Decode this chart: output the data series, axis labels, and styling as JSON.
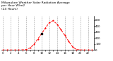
{
  "hours": [
    0,
    1,
    2,
    3,
    4,
    5,
    6,
    7,
    8,
    9,
    10,
    11,
    12,
    13,
    14,
    15,
    16,
    17,
    18,
    19,
    20,
    21,
    22,
    23
  ],
  "values": [
    0,
    0,
    0,
    0,
    0,
    2,
    8,
    35,
    95,
    185,
    275,
    370,
    460,
    490,
    430,
    340,
    245,
    145,
    55,
    8,
    2,
    0,
    0,
    0
  ],
  "line_color": "#ff0000",
  "marker": "o",
  "linestyle": "--",
  "grid_color": "#999999",
  "bg_color": "#ffffff",
  "title": "Milwaukee Weather Solar Radiation Average\nper Hour W/m2\n(24 Hours)",
  "title_color": "#000000",
  "title_fontsize": 3.2,
  "ylim": [
    0,
    560
  ],
  "xlim": [
    -0.5,
    23.5
  ],
  "yticks": [
    0,
    100,
    200,
    300,
    400,
    500
  ],
  "tick_fontsize": 2.8,
  "linewidth": 0.7,
  "markersize": 1.2,
  "special_marker_hour": 10,
  "special_marker_color": "#000000"
}
